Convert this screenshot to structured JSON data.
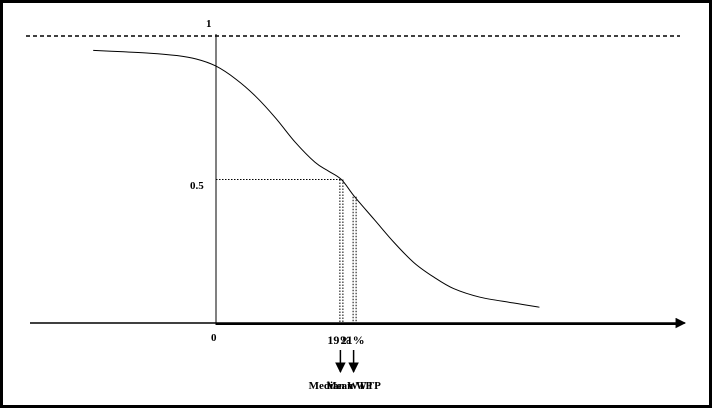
{
  "chart_data": {
    "type": "line",
    "title": "",
    "xlabel": "",
    "ylabel": "",
    "y_ticks": [
      "1",
      "0.5"
    ],
    "origin_label": "0",
    "reference_line": {
      "y": 1,
      "style": "dashed"
    },
    "series": [
      {
        "x": [
          -18.6,
          -14,
          -10,
          -6,
          -3,
          0,
          3,
          6,
          9,
          12,
          15,
          17,
          19,
          21,
          24,
          27,
          30,
          33,
          36,
          40,
          45,
          49
        ],
        "y": [
          0.95,
          0.945,
          0.94,
          0.932,
          0.92,
          0.895,
          0.85,
          0.79,
          0.715,
          0.63,
          0.56,
          0.53,
          0.5,
          0.44,
          0.36,
          0.28,
          0.21,
          0.16,
          0.12,
          0.09,
          0.07,
          0.055
        ]
      }
    ],
    "markers": [
      {
        "x": 19,
        "y": 0.5,
        "label": "19%",
        "caption": "Median WTP"
      },
      {
        "x": 21,
        "y": 0.44,
        "label": "21%",
        "caption": "Mean WTP"
      }
    ]
  }
}
